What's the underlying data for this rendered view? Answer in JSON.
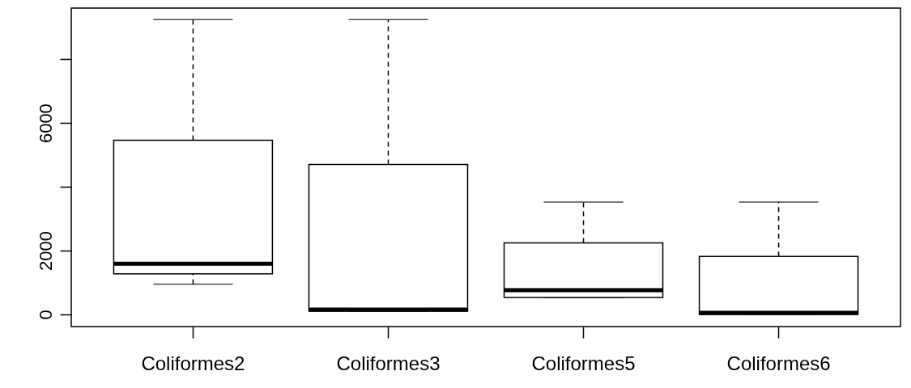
{
  "chart_data": {
    "type": "box",
    "categories": [
      "Coliformes2",
      "Coliformes3",
      "Coliformes5",
      "Coliformes6"
    ],
    "boxes": [
      {
        "low": 950,
        "q1": 1270,
        "median": 1590,
        "q3": 5460,
        "high": 9240
      },
      {
        "low": 100,
        "q1": 100,
        "median": 150,
        "q3": 4700,
        "high": 9240
      },
      {
        "low": 530,
        "q1": 530,
        "median": 760,
        "q3": 2240,
        "high": 3520
      },
      {
        "low": 0,
        "q1": 0,
        "median": 50,
        "q3": 1820,
        "high": 3520
      }
    ],
    "ylim": [
      -380,
      9600
    ],
    "yticks": [
      0,
      2000,
      {
        "value": 4000,
        "label": null
      },
      6000,
      {
        "value": 8000,
        "label": null
      }
    ],
    "line_style": "dashed"
  }
}
